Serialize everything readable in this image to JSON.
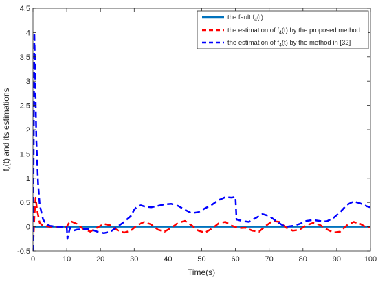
{
  "chart_data": {
    "type": "line",
    "title": "",
    "xlabel": "Time(s)",
    "ylabel_parts": {
      "pre": "f",
      "sub": "4",
      "post": "(t) and its estimations"
    },
    "xlim": [
      0,
      100
    ],
    "ylim": [
      -0.5,
      4.5
    ],
    "xticks": [
      0,
      10,
      20,
      30,
      40,
      50,
      60,
      70,
      80,
      90,
      100
    ],
    "yticks": [
      -0.5,
      0,
      0.5,
      1,
      1.5,
      2,
      2.5,
      3,
      3.5,
      4,
      4.5
    ],
    "grid": false,
    "legend_position": "top-right",
    "series": [
      {
        "key": "fault",
        "legend": {
          "pre": "the fault f",
          "sub": "4",
          "post": "(t)"
        },
        "color": "#0072BD",
        "style": "solid",
        "x": [
          0,
          100
        ],
        "y": [
          0,
          0
        ]
      },
      {
        "key": "proposed",
        "legend": {
          "pre": "the estimation of f",
          "sub": "4",
          "post": "(t) by the proposed method"
        },
        "color": "#FF0000",
        "style": "dashed",
        "x": [
          0,
          0.4,
          0.8,
          1.2,
          2,
          3,
          5,
          8,
          10,
          11,
          13,
          15,
          17,
          19,
          21,
          23,
          25,
          27,
          29,
          31,
          33,
          35,
          37,
          39,
          41,
          43,
          45,
          47,
          49,
          51,
          53,
          55,
          57,
          59,
          61,
          63,
          65,
          67,
          69,
          71,
          73,
          75,
          77,
          79,
          81,
          83,
          85,
          87,
          89,
          91,
          93,
          95,
          97,
          99,
          100
        ],
        "y": [
          -0.5,
          0.2,
          0.6,
          0.35,
          0.08,
          0.02,
          0.0,
          0.0,
          0.0,
          0.12,
          0.06,
          -0.05,
          -0.1,
          -0.02,
          0.06,
          0.03,
          -0.07,
          -0.12,
          -0.08,
          0.04,
          0.1,
          0.05,
          -0.06,
          -0.1,
          -0.02,
          0.08,
          0.12,
          0.03,
          -0.08,
          -0.12,
          -0.04,
          0.07,
          0.1,
          0.02,
          -0.03,
          -0.02,
          -0.08,
          -0.1,
          0.02,
          0.12,
          0.1,
          -0.02,
          -0.08,
          -0.06,
          0.03,
          0.08,
          0.04,
          -0.05,
          -0.12,
          -0.1,
          0.03,
          0.1,
          0.06,
          -0.02,
          -0.01
        ]
      },
      {
        "key": "ref32",
        "legend": {
          "pre": "the estimation of f",
          "sub": "4",
          "post": "(t) by the method in [32]"
        },
        "color": "#0000FF",
        "style": "dashed",
        "x": [
          0,
          0.2,
          0.4,
          0.7,
          1,
          1.5,
          2,
          3,
          4,
          5,
          7,
          10,
          10.2,
          10.5,
          11,
          12,
          13,
          15,
          17,
          19,
          21,
          23,
          25,
          27,
          29,
          30,
          31,
          32,
          33,
          35,
          37,
          39,
          41,
          43,
          45,
          47,
          49,
          51,
          53,
          55,
          57,
          59,
          60,
          60.3,
          62,
          64,
          66,
          68,
          70,
          72,
          74,
          75,
          77,
          79,
          81,
          83,
          85,
          87,
          89,
          91,
          93,
          95,
          97,
          99,
          100
        ],
        "y": [
          -0.5,
          1.5,
          4.0,
          3.0,
          1.8,
          0.9,
          0.45,
          0.15,
          0.05,
          0.02,
          0.0,
          0.0,
          -0.25,
          -0.15,
          -0.02,
          -0.08,
          -0.06,
          -0.05,
          -0.05,
          -0.1,
          -0.13,
          -0.1,
          0.0,
          0.1,
          0.22,
          0.35,
          0.43,
          0.44,
          0.42,
          0.4,
          0.43,
          0.46,
          0.47,
          0.43,
          0.35,
          0.28,
          0.3,
          0.38,
          0.45,
          0.55,
          0.61,
          0.6,
          0.62,
          0.15,
          0.12,
          0.1,
          0.18,
          0.26,
          0.22,
          0.12,
          0.03,
          0.0,
          0.02,
          0.06,
          0.12,
          0.14,
          0.12,
          0.11,
          0.18,
          0.3,
          0.45,
          0.52,
          0.48,
          0.42,
          0.4
        ]
      }
    ]
  }
}
